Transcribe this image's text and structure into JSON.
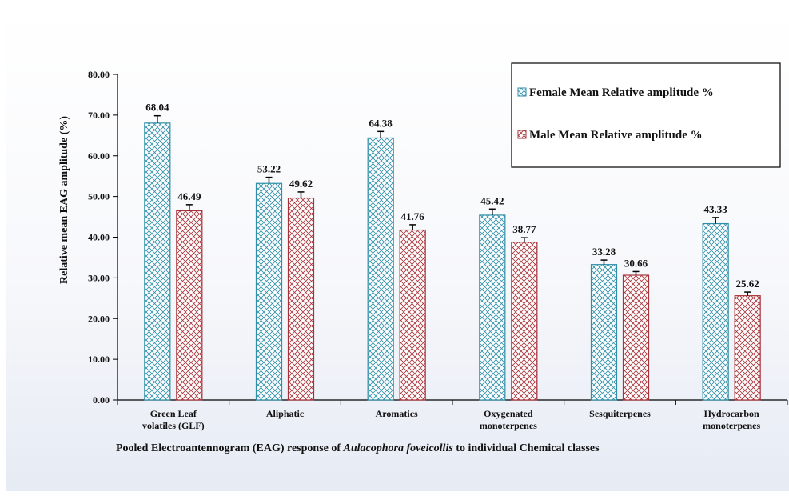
{
  "chart_data": {
    "type": "bar",
    "categories": [
      [
        "Green Leaf",
        "volatiles (GLF)"
      ],
      [
        "Aliphatic"
      ],
      [
        "Aromatics"
      ],
      [
        "Oxygenated",
        "monoterpenes"
      ],
      [
        "Sesquiterpenes"
      ],
      [
        "Hydrocarbon",
        "monoterpenes"
      ]
    ],
    "series": [
      {
        "name": "Female Mean Relative amplitude %",
        "values": [
          68.04,
          53.22,
          64.38,
          45.42,
          33.28,
          43.33
        ],
        "labels": [
          "68.04",
          "53.22",
          "64.38",
          "45.42",
          "33.28",
          "43.33"
        ],
        "errors": [
          1.8,
          1.5,
          1.6,
          1.5,
          1.1,
          1.5
        ],
        "color": "#2f8fa8",
        "pattern": "cross-hatch"
      },
      {
        "name": "Male Mean Relative amplitude %",
        "values": [
          46.49,
          49.62,
          41.76,
          38.77,
          30.66,
          25.62
        ],
        "labels": [
          "46.49",
          "49.62",
          "41.76",
          "38.77",
          "30.66",
          "25.62"
        ],
        "errors": [
          1.5,
          1.5,
          1.3,
          1.1,
          0.9,
          0.9
        ],
        "color": "#a8333a",
        "pattern": "cross-hatch"
      }
    ],
    "yticks": [
      "0.00",
      "10.00",
      "20.00",
      "30.00",
      "40.00",
      "50.00",
      "60.00",
      "70.00",
      "80.00"
    ],
    "ylim": [
      0,
      80
    ],
    "ylabel": "Relative mean EAG amplitude  (%)",
    "xlabel": {
      "prefix": "Pooled Electroantennogram  (EAG)  response of ",
      "species": "Aulacophora foveicollis",
      "suffix": " to individual  Chemical  classes"
    },
    "legend_position": "top-right",
    "grid": false
  }
}
